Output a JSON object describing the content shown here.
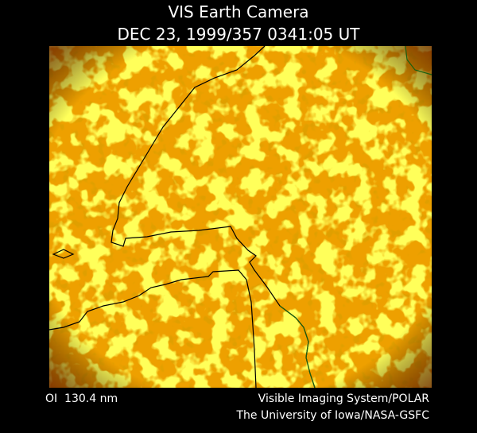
{
  "header": {
    "title": "VIS Earth Camera",
    "timestamp": "DEC 23, 1999/357 0341:05 UT"
  },
  "footer": {
    "wavelength": "OI  130.4 nm",
    "instrument": "Visible Imaging System/POLAR",
    "credit": "The University of Iowa/NASA-GSFC"
  }
}
